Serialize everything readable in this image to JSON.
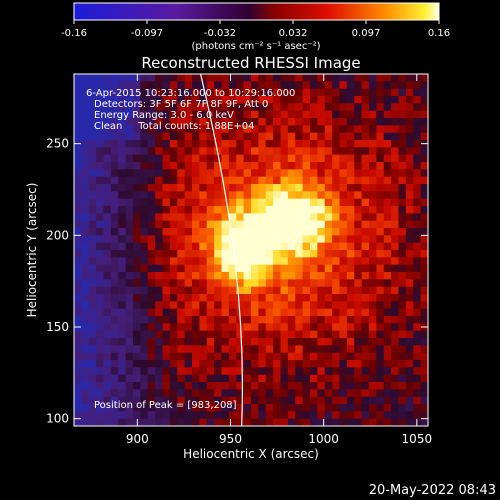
{
  "chart_data": {
    "type": "heatmap",
    "title": "Reconstructed RHESSI Image",
    "xlabel": "Heliocentric X (arcsec)",
    "ylabel": "Heliocentric Y (arcsec)",
    "xlim": [
      866,
      1056
    ],
    "ylim": [
      96,
      288
    ],
    "xticks": [
      900,
      950,
      1000,
      1050
    ],
    "yticks": [
      100,
      150,
      200,
      250
    ],
    "colorbar": {
      "range": [
        -0.16,
        0.16
      ],
      "ticks": [
        "-0.16",
        "-0.097",
        "-0.032",
        "0.032",
        "0.097",
        "0.16"
      ],
      "unit_label": "(photons cm⁻² s⁻¹ asec⁻²)",
      "colors": {
        "neg_low": "#1b1bd8",
        "neg_high": "#6a006a",
        "zero": "#1a0018",
        "red": "#d40000",
        "orange": "#ff7a00",
        "yellow": "#ffe000",
        "white": "#ffffe0"
      }
    },
    "annotations": [
      "6-Apr-2015 10:23:16.000 to 10:29:16.000",
      "Detectors: 3F 5F 6F 7F 8F 9F, Att 0",
      "Energy Range: 3.0 - 6.0 keV",
      "Clean     Total counts: 1.88E+04"
    ],
    "peak_label": "Position of Peak = [983,208]",
    "peak": [
      983,
      208
    ],
    "limb_arc": [
      [
        933,
        292
      ],
      [
        953,
        208
      ],
      [
        958,
        150
      ],
      [
        956,
        96
      ]
    ]
  },
  "footer": {
    "timestamp": "20-May-2022 08:43"
  }
}
